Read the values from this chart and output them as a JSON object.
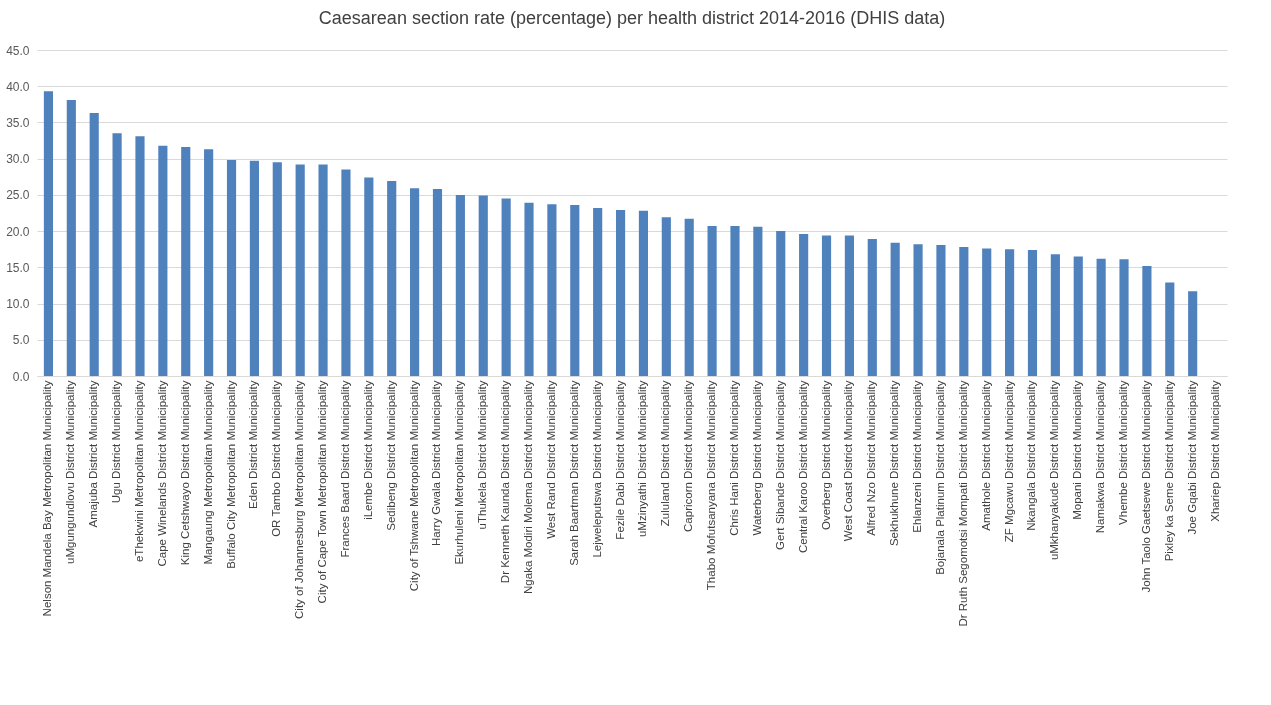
{
  "chart_data": {
    "type": "bar",
    "title": "Caesarean section rate (percentage) per health district 2014-2016 (DHIS data)",
    "categories": [
      "Nelson Mandela Bay Metropolitan Municipality",
      "uMgungundlovu District Municipality",
      "Amajuba District Municipality",
      "Ugu District Municipality",
      "eThekwini Metropolitan Municipality",
      "Cape Winelands District Municipality",
      "King Cetshwayo District Municipality",
      "Mangaung Metropolitan Municipality",
      "Buffalo City Metropolitan Municipality",
      "Eden District Municipality",
      "OR Tambo District Municipality",
      "City of Johannesburg Metropolitan Municipality",
      "City of Cape Town Metropolitan Municipality",
      "Frances Baard District Municipality",
      "iLembe District Municipality",
      "Sedibeng District Municipality",
      "City of Tshwane Metropolitan Municipality",
      "Harry Gwala District Municipality",
      "Ekurhuleni Metropolitan Municipality",
      "uThukela District Municipality",
      "Dr Kenneth Kaunda District Municipality",
      "Ngaka Modiri Molema District Municipality",
      "West Rand District Municipality",
      "Sarah Baartman District Municipality",
      "Lejweleputswa District Municipality",
      "Fezile Dabi District Municipality",
      "uMzinyathi District Municipality",
      "Zululand District Municipality",
      "Capricorn District Municipality",
      "Thabo Mofutsanyana District Municipality",
      "Chris Hani District Municipality",
      "Waterberg District Municipality",
      "Gert Sibande District Municipality",
      "Central Karoo District Municipality",
      "Overberg District Municipality",
      "West Coast District Municipality",
      "Alfred Nzo District Municipality",
      "Sekhukhune District Municipality",
      "Ehlanzeni District Municipality",
      "Bojanala Platinum District Municipality",
      "Dr Ruth Segomotsi Mompati District Municipality",
      "Amathole District Municipality",
      "ZF Mgcawu District Municipality",
      "Nkangala District Municipality",
      "uMkhanyakude District Municipality",
      "Mopani District Municipality",
      "Namakwa District Municipality",
      "Vhembe District Municipality",
      "John Taolo Gaetsewe District Municipality",
      "Pixley ka Seme District Municipality",
      "Joe Gqabi District Municipality",
      "Xhariep District Municipality"
    ],
    "values": [
      39.3,
      38.1,
      36.3,
      33.5,
      33.1,
      31.8,
      31.6,
      31.3,
      29.8,
      29.7,
      29.5,
      29.2,
      29.2,
      28.5,
      27.4,
      26.9,
      25.9,
      25.8,
      25.0,
      24.9,
      24.5,
      23.9,
      23.7,
      23.6,
      23.2,
      22.9,
      22.8,
      21.9,
      21.7,
      20.7,
      20.7,
      20.6,
      20.0,
      19.6,
      19.4,
      19.4,
      18.9,
      18.4,
      18.2,
      18.1,
      17.8,
      17.6,
      17.5,
      17.4,
      16.8,
      16.5,
      16.2,
      16.1,
      15.2,
      12.9,
      11.7,
      null
    ],
    "color": "#4f81bd",
    "ylim": [
      0,
      45
    ],
    "yticks": [
      {
        "value": 0,
        "label": "0.0"
      },
      {
        "value": 5,
        "label": "5.0"
      },
      {
        "value": 10,
        "label": "10.0"
      },
      {
        "value": 15,
        "label": "15.0"
      },
      {
        "value": 20,
        "label": "20.0"
      },
      {
        "value": 25,
        "label": "25.0"
      },
      {
        "value": 30,
        "label": "30.0"
      },
      {
        "value": 35,
        "label": "35.0"
      },
      {
        "value": 40,
        "label": "40.0"
      },
      {
        "value": 45,
        "label": "45.0"
      }
    ],
    "grid": true
  }
}
